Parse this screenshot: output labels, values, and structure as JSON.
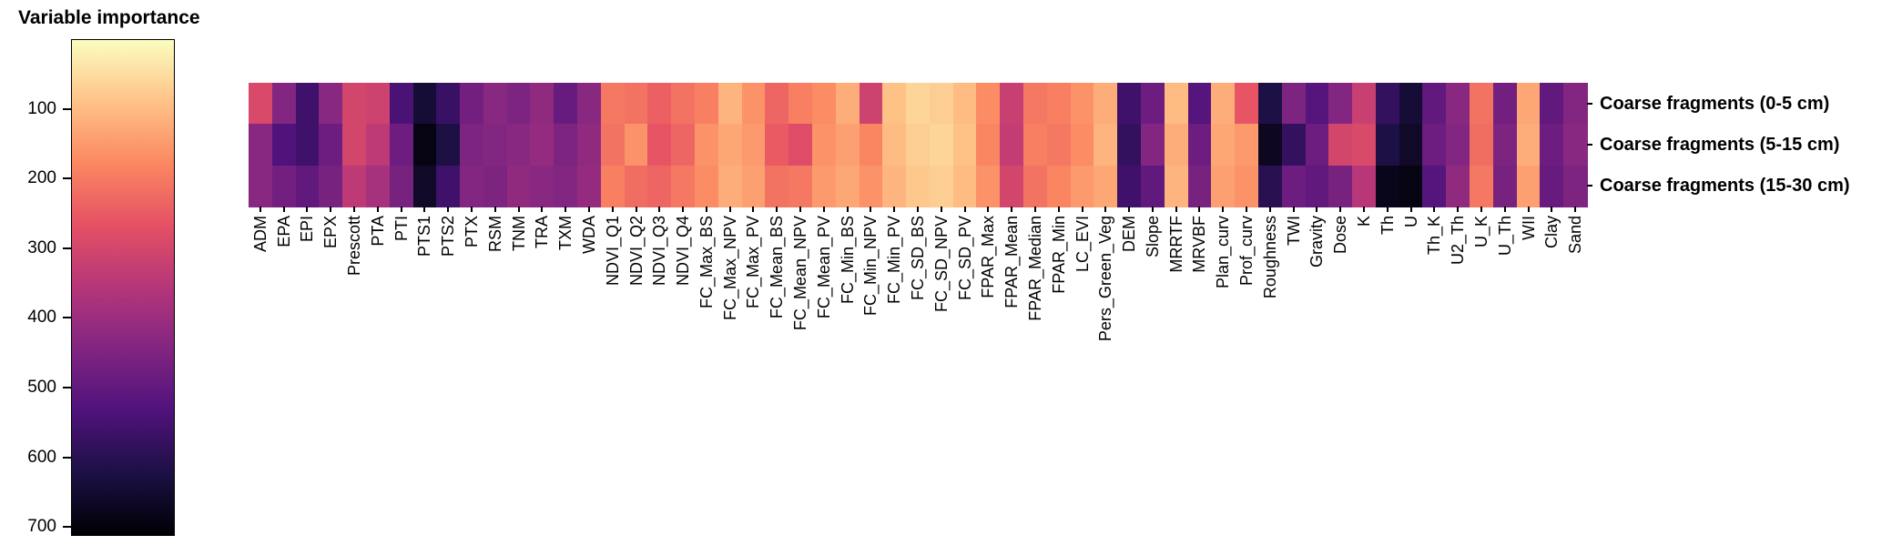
{
  "title": "Variable importance",
  "colors": {
    "background": "#ffffff",
    "text": "#000000",
    "magma_stops": [
      "#000004",
      "#1c1044",
      "#4f127b",
      "#812581",
      "#b5367a",
      "#e55064",
      "#fb8761",
      "#fec287",
      "#fbfdbf"
    ]
  },
  "colorbar": {
    "title": "Variable importance",
    "ticks": [
      100,
      200,
      300,
      400,
      500,
      600,
      700
    ],
    "orientation": "vertical",
    "low_end": "light cream (low importance value)",
    "high_end": "black (high importance value)"
  },
  "chart_data": {
    "type": "heatmap",
    "title": "Variable importance",
    "colormap": "magma reversed (low = light cream, high = black)",
    "value_range": [
      0,
      710
    ],
    "legend_position": "left colorbar with ticks 100-700",
    "grid": false,
    "columns": [
      "ADM",
      "EPA",
      "EPI",
      "EPX",
      "Prescott",
      "PTA",
      "PTI",
      "PTS1",
      "PTS2",
      "PTX",
      "RSM",
      "TNM",
      "TRA",
      "TXM",
      "WDA",
      "NDVI_Q1",
      "NDVI_Q2",
      "NDVI_Q3",
      "NDVI_Q4",
      "FC_Max_BS",
      "FC_Max_NPV",
      "FC_Max_PV",
      "FC_Mean_BS",
      "FC_Mean_NPV",
      "FC_Mean_PV",
      "FC_Min_BS",
      "FC_Min_NPV",
      "FC_Min_PV",
      "FC_SD_BS",
      "FC_SD_NPV",
      "FC_SD_PV",
      "FPAR_Max",
      "FPAR_Mean",
      "FPAR_Median",
      "FPAR_Min",
      "LC_EVI",
      "Pers_Green_Veg",
      "DEM",
      "Slope",
      "MRRTF",
      "MRVBF",
      "Plan_curv",
      "Prof_curv",
      "Roughness",
      "TWI",
      "Gravity",
      "Dose",
      "K",
      "Th",
      "U",
      "Th_K",
      "U2_Th",
      "U_K",
      "U_Th",
      "WII",
      "Clay",
      "Sand"
    ],
    "rows": [
      "Coarse fragments (0-5 cm)",
      "Coarse fragments (5-15 cm)",
      "Coarse fragments (15-30 cm)"
    ],
    "values": [
      [
        290,
        440,
        560,
        430,
        300,
        310,
        540,
        640,
        570,
        470,
        430,
        450,
        420,
        490,
        430,
        200,
        210,
        240,
        210,
        190,
        110,
        160,
        230,
        190,
        170,
        120,
        310,
        90,
        60,
        70,
        100,
        170,
        320,
        200,
        190,
        160,
        120,
        560,
        480,
        100,
        520,
        120,
        260,
        620,
        450,
        520,
        440,
        320,
        580,
        640,
        500,
        430,
        210,
        470,
        130,
        500,
        440
      ],
      [
        430,
        530,
        560,
        480,
        300,
        340,
        480,
        690,
        620,
        450,
        440,
        430,
        410,
        450,
        420,
        210,
        160,
        260,
        230,
        160,
        130,
        150,
        250,
        280,
        160,
        140,
        180,
        100,
        70,
        60,
        90,
        180,
        330,
        190,
        200,
        170,
        110,
        580,
        440,
        120,
        480,
        130,
        150,
        670,
        580,
        480,
        300,
        290,
        620,
        660,
        480,
        440,
        220,
        450,
        120,
        480,
        430
      ],
      [
        430,
        470,
        500,
        460,
        340,
        380,
        460,
        660,
        560,
        440,
        450,
        420,
        430,
        440,
        410,
        190,
        220,
        230,
        200,
        170,
        120,
        140,
        210,
        200,
        150,
        130,
        160,
        110,
        80,
        70,
        100,
        160,
        300,
        210,
        180,
        150,
        130,
        560,
        500,
        110,
        460,
        140,
        160,
        600,
        480,
        500,
        460,
        350,
        680,
        690,
        520,
        420,
        200,
        460,
        140,
        490,
        450
      ]
    ]
  }
}
